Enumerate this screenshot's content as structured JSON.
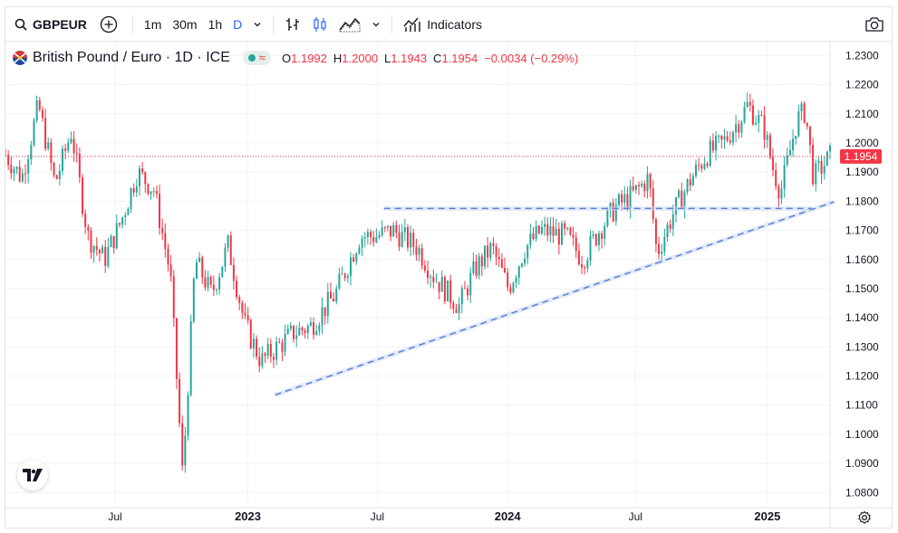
{
  "toolbar": {
    "symbol": "GBPEUR",
    "intervals": [
      "1m",
      "30m",
      "1h",
      "D"
    ],
    "active_interval": "D",
    "indicators_label": "Indicators"
  },
  "legend": {
    "title": "British Pound / Euro · 1D · ICE",
    "open_key": "O",
    "open": "1.1992",
    "high_key": "H",
    "high": "1.2000",
    "low_key": "L",
    "low": "1.1943",
    "close_key": "C",
    "close": "1.1954",
    "change": "−0.0034 (−0.29%)"
  },
  "chart": {
    "current_price": "1.1954",
    "current_value": 1.1954,
    "price_min": 1.0748,
    "price_max": 1.2348,
    "price_labels": [
      "1.2300",
      "1.2200",
      "1.2100",
      "1.2000",
      "1.1900",
      "1.1800",
      "1.1700",
      "1.1600",
      "1.1500",
      "1.1400",
      "1.1300",
      "1.1200",
      "1.1100",
      "1.1000",
      "1.0900",
      "1.0800"
    ],
    "time_labels": [
      {
        "text": "Jul",
        "bold": false,
        "t": 0.133
      },
      {
        "text": "2023",
        "bold": true,
        "t": 0.294
      },
      {
        "text": "Jul",
        "bold": false,
        "t": 0.451
      },
      {
        "text": "2024",
        "bold": true,
        "t": 0.609
      },
      {
        "text": "Jul",
        "bold": false,
        "t": 0.764
      },
      {
        "text": "2025",
        "bold": true,
        "t": 0.924
      }
    ],
    "series_anchors": [
      [
        0.0,
        1.196
      ],
      [
        0.02,
        1.188
      ],
      [
        0.04,
        1.213
      ],
      [
        0.06,
        1.186
      ],
      [
        0.08,
        1.204
      ],
      [
        0.1,
        1.168
      ],
      [
        0.12,
        1.16
      ],
      [
        0.14,
        1.173
      ],
      [
        0.16,
        1.19
      ],
      [
        0.18,
        1.184
      ],
      [
        0.2,
        1.155
      ],
      [
        0.215,
        1.085
      ],
      [
        0.23,
        1.16
      ],
      [
        0.25,
        1.148
      ],
      [
        0.27,
        1.165
      ],
      [
        0.29,
        1.138
      ],
      [
        0.31,
        1.125
      ],
      [
        0.33,
        1.13
      ],
      [
        0.35,
        1.135
      ],
      [
        0.37,
        1.137
      ],
      [
        0.4,
        1.148
      ],
      [
        0.43,
        1.168
      ],
      [
        0.45,
        1.168
      ],
      [
        0.47,
        1.17
      ],
      [
        0.5,
        1.164
      ],
      [
        0.52,
        1.154
      ],
      [
        0.55,
        1.144
      ],
      [
        0.57,
        1.157
      ],
      [
        0.59,
        1.164
      ],
      [
        0.61,
        1.15
      ],
      [
        0.63,
        1.164
      ],
      [
        0.65,
        1.17
      ],
      [
        0.68,
        1.168
      ],
      [
        0.7,
        1.16
      ],
      [
        0.72,
        1.17
      ],
      [
        0.74,
        1.178
      ],
      [
        0.76,
        1.182
      ],
      [
        0.78,
        1.188
      ],
      [
        0.79,
        1.162
      ],
      [
        0.81,
        1.176
      ],
      [
        0.83,
        1.187
      ],
      [
        0.85,
        1.196
      ],
      [
        0.87,
        1.2
      ],
      [
        0.89,
        1.208
      ],
      [
        0.9,
        1.213
      ],
      [
        0.92,
        1.205
      ],
      [
        0.93,
        1.192
      ],
      [
        0.94,
        1.183
      ],
      [
        0.96,
        1.208
      ],
      [
        0.97,
        1.211
      ],
      [
        0.98,
        1.188
      ],
      [
        1.0,
        1.1954
      ]
    ],
    "trend_lines": [
      {
        "name": "ascending-trendline",
        "x1": 0.327,
        "y1": 1.1135,
        "x2": 1.005,
        "y2": 1.1798
      },
      {
        "name": "horizontal-resistance",
        "x1": 0.459,
        "y1": 1.1775,
        "x2": 0.978,
        "y2": 1.1775
      }
    ]
  },
  "colors": {
    "up": "#26a69a",
    "down": "#f23645",
    "trend": "#5b7fd6",
    "accent": "#2962ff"
  }
}
